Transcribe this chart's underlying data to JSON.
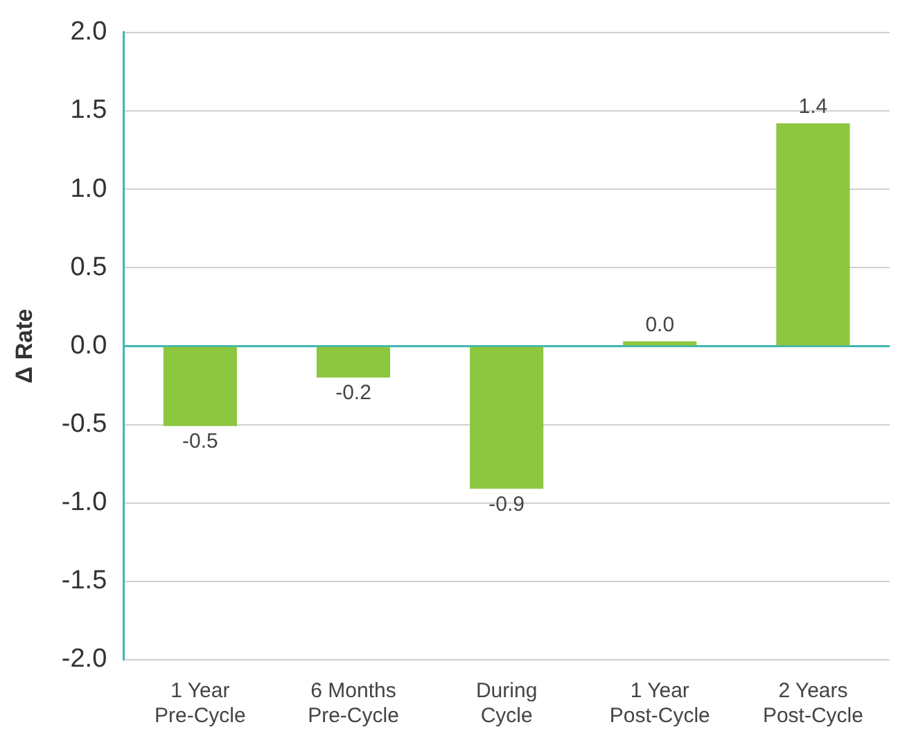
{
  "chart_data": {
    "type": "bar",
    "ylabel": "Δ Rate",
    "categories": [
      "1 Year\nPre-Cycle",
      "6 Months\nPre-Cycle",
      "During\nCycle",
      "1 Year\nPost-Cycle",
      "2 Years\nPost-Cycle"
    ],
    "values": [
      -0.51,
      -0.2,
      -0.91,
      0.03,
      1.42
    ],
    "value_labels": [
      "-0.5",
      "-0.2",
      "-0.9",
      "0.0",
      "1.4"
    ],
    "color": "#8dc63f",
    "ylim": [
      -2,
      2
    ],
    "yticks": [
      {
        "value": -2,
        "label": "-2.0"
      },
      {
        "value": -1.5,
        "label": "-1.5"
      },
      {
        "value": -1,
        "label": "-1.0"
      },
      {
        "value": -0.5,
        "label": "-0.5"
      },
      {
        "value": 0,
        "label": "0.0"
      },
      {
        "value": 0.5,
        "label": "0.5"
      },
      {
        "value": 1,
        "label": "1.0"
      },
      {
        "value": 1.5,
        "label": "1.5"
      },
      {
        "value": 2,
        "label": "2.0"
      }
    ],
    "ref_lines": [
      {
        "axis": "y",
        "value": 0,
        "color": "#3fb6b2"
      }
    ],
    "grid": "y",
    "legend": false
  }
}
